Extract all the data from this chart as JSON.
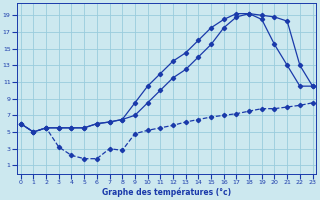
{
  "xlabel": "Graphe des températures (°c)",
  "background_color": "#cce8ef",
  "grid_color": "#99ccdd",
  "line_color": "#1a3aaa",
  "x_ticks": [
    0,
    1,
    2,
    3,
    4,
    5,
    6,
    7,
    8,
    9,
    10,
    11,
    12,
    13,
    14,
    15,
    16,
    17,
    18,
    19,
    20,
    21,
    22,
    23
  ],
  "y_ticks": [
    1,
    3,
    5,
    7,
    9,
    11,
    13,
    15,
    17,
    19
  ],
  "xlim": [
    -0.3,
    23.3
  ],
  "ylim": [
    0,
    20.5
  ],
  "curve1_x": [
    0,
    1,
    2,
    3,
    4,
    5,
    6,
    7,
    8,
    9,
    10,
    11,
    12,
    13,
    14,
    15,
    16,
    17,
    18,
    19,
    20,
    21,
    22,
    23
  ],
  "curve1_y": [
    6.0,
    5.0,
    5.5,
    5.5,
    5.5,
    5.5,
    6.0,
    6.2,
    6.5,
    7.0,
    8.5,
    10.0,
    11.5,
    12.5,
    14.0,
    15.5,
    17.5,
    18.8,
    19.2,
    18.5,
    15.5,
    13.0,
    10.5,
    10.5
  ],
  "curve2_x": [
    0,
    1,
    2,
    3,
    4,
    5,
    6,
    7,
    8,
    9,
    10,
    11,
    12,
    13,
    14,
    15,
    16,
    17,
    18,
    19,
    20,
    21,
    22,
    23
  ],
  "curve2_y": [
    6.0,
    5.0,
    5.5,
    5.5,
    5.5,
    5.5,
    6.0,
    6.2,
    6.5,
    8.5,
    10.5,
    12.0,
    13.5,
    14.5,
    16.0,
    17.5,
    18.5,
    19.2,
    19.2,
    19.0,
    18.8,
    18.3,
    13.0,
    10.5
  ],
  "curve3_x": [
    0,
    1,
    2,
    3,
    4,
    5,
    6,
    7,
    8,
    9,
    10,
    11,
    12,
    13,
    14,
    15,
    16,
    17,
    18,
    19,
    20,
    21,
    22,
    23
  ],
  "curve3_y": [
    6.0,
    5.0,
    5.5,
    3.2,
    2.2,
    1.8,
    1.8,
    3.0,
    2.8,
    4.8,
    5.2,
    5.5,
    5.8,
    6.2,
    6.5,
    6.8,
    7.0,
    7.2,
    7.5,
    7.8,
    7.8,
    8.0,
    8.2,
    8.5
  ]
}
